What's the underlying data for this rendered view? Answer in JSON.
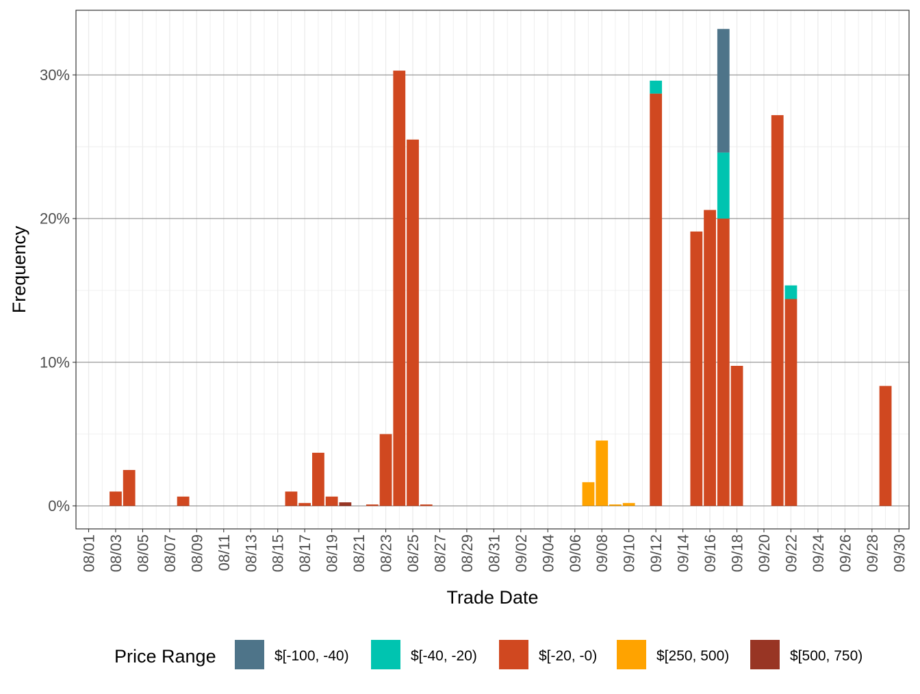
{
  "chart_data": {
    "type": "bar",
    "stacked": true,
    "title": "",
    "xlabel": "Trade Date",
    "ylabel": "Frequency",
    "ylim": [
      -1.6,
      34.5
    ],
    "y_ticks": [
      0,
      10,
      20,
      30
    ],
    "y_tick_labels": [
      "0%",
      "10%",
      "20%",
      "30%"
    ],
    "y_minor_ticks": [
      5,
      15,
      25
    ],
    "x_tick_labels": [
      "08/01",
      "08/03",
      "08/05",
      "08/07",
      "08/09",
      "08/11",
      "08/13",
      "08/15",
      "08/17",
      "08/19",
      "08/21",
      "08/23",
      "08/25",
      "08/27",
      "08/29",
      "08/31",
      "09/02",
      "09/04",
      "09/06",
      "09/08",
      "09/10",
      "09/12",
      "09/14",
      "09/16",
      "09/18",
      "09/20",
      "09/22",
      "09/24",
      "09/26",
      "09/28",
      "09/30"
    ],
    "grid": true,
    "legend": {
      "title": "Price Range",
      "position": "bottom",
      "entries": [
        {
          "label": "$[-100, -40)",
          "color": "#4e7489"
        },
        {
          "label": "$[-40, -20)",
          "color": "#00c4b0"
        },
        {
          "label": "$[-20, -0)",
          "color": "#d04820"
        },
        {
          "label": "$[250, 500)",
          "color": "#ffa300"
        },
        {
          "label": "$[500, 750)",
          "color": "#983524"
        }
      ]
    },
    "stack_order": [
      "$[-20, -0)",
      "$[-40, -20)",
      "$[-100, -40)"
    ],
    "bars": [
      {
        "date": "08/03",
        "series": "$[-20, -0)",
        "value": 1.0
      },
      {
        "date": "08/04",
        "series": "$[-20, -0)",
        "value": 2.5
      },
      {
        "date": "08/08",
        "series": "$[-20, -0)",
        "value": 0.65
      },
      {
        "date": "08/16",
        "series": "$[-20, -0)",
        "value": 1.0
      },
      {
        "date": "08/17",
        "series": "$[-20, -0)",
        "value": 0.2
      },
      {
        "date": "08/18",
        "series": "$[-20, -0)",
        "value": 3.7
      },
      {
        "date": "08/19",
        "series": "$[-20, -0)",
        "value": 0.65
      },
      {
        "date": "08/20",
        "series": "$[500, 750)",
        "value": 0.25
      },
      {
        "date": "08/22",
        "series": "$[-20, -0)",
        "value": 0.1
      },
      {
        "date": "08/23",
        "series": "$[-20, -0)",
        "value": 5.0
      },
      {
        "date": "08/24",
        "series": "$[-20, -0)",
        "value": 30.3
      },
      {
        "date": "08/25",
        "series": "$[-20, -0)",
        "value": 25.5
      },
      {
        "date": "08/26",
        "series": "$[-20, -0)",
        "value": 0.1
      },
      {
        "date": "09/07",
        "series": "$[250, 500)",
        "value": 1.65
      },
      {
        "date": "09/08",
        "series": "$[250, 500)",
        "value": 4.55
      },
      {
        "date": "09/09",
        "series": "$[250, 500)",
        "value": 0.1
      },
      {
        "date": "09/10",
        "series": "$[250, 500)",
        "value": 0.2
      },
      {
        "date": "09/12",
        "series": "$[-20, -0)",
        "value": 28.7
      },
      {
        "date": "09/12",
        "series": "$[-40, -20)",
        "value": 0.9
      },
      {
        "date": "09/15",
        "series": "$[-20, -0)",
        "value": 19.1
      },
      {
        "date": "09/16",
        "series": "$[-20, -0)",
        "value": 20.6
      },
      {
        "date": "09/17",
        "series": "$[-20, -0)",
        "value": 20.0
      },
      {
        "date": "09/17",
        "series": "$[-40, -20)",
        "value": 4.6
      },
      {
        "date": "09/17",
        "series": "$[-100, -40)",
        "value": 8.6
      },
      {
        "date": "09/18",
        "series": "$[-20, -0)",
        "value": 9.75
      },
      {
        "date": "09/21",
        "series": "$[-20, -0)",
        "value": 27.2
      },
      {
        "date": "09/22",
        "series": "$[-20, -0)",
        "value": 14.4
      },
      {
        "date": "09/22",
        "series": "$[-40, -20)",
        "value": 0.95
      },
      {
        "date": "09/29",
        "series": "$[-20, -0)",
        "value": 8.35
      }
    ]
  }
}
